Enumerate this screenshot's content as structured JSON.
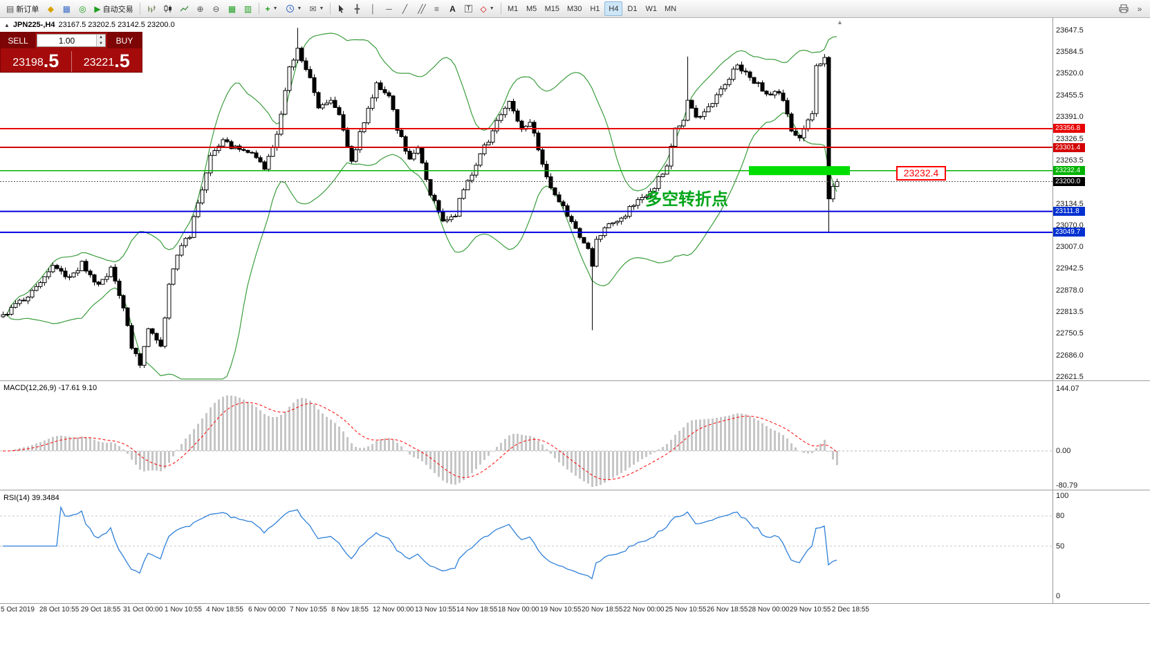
{
  "toolbar": {
    "new_order": "新订单",
    "auto_trading": "自动交易",
    "timeframes": [
      "M1",
      "M5",
      "M15",
      "M30",
      "H1",
      "H4",
      "D1",
      "W1",
      "MN"
    ],
    "active_timeframe": "H4"
  },
  "chart_header": {
    "symbol_period": "JPN225-,H4",
    "ohlc": "23167.5 23202.5 23142.5 23200.0"
  },
  "trade_panel": {
    "sell_label": "SELL",
    "buy_label": "BUY",
    "volume": "1.00",
    "bid_int": "23198",
    "bid_dec": ".5",
    "ask_int": "23221",
    "ask_dec": ".5"
  },
  "annotation": {
    "text": "多空转折点",
    "color": "#00a518"
  },
  "price_callout": {
    "text": "23232.4",
    "color": "#ff0000"
  },
  "indicators": {
    "macd_label": "MACD(12,26,9) -17.61 9.10",
    "rsi_label": "RSI(14) 39.3484"
  },
  "axes": {
    "price_labels": [
      "23647.5",
      "23584.5",
      "23520.0",
      "23455.5",
      "23391.0",
      "23326.5",
      "23263.5",
      "23134.5",
      "23070.0",
      "23007.0",
      "22942.5",
      "22878.0",
      "22813.5",
      "22750.5",
      "22686.0",
      "22621.5"
    ],
    "macd_labels": [
      {
        "text": "144.07",
        "value": 144.07
      },
      {
        "text": "0.00",
        "value": 0
      },
      {
        "text": "-80.79",
        "value": -80.79
      }
    ],
    "rsi_labels": [
      {
        "text": "100",
        "value": 100
      },
      {
        "text": "80",
        "value": 80
      },
      {
        "text": "50",
        "value": 50
      },
      {
        "text": "0",
        "value": 0
      }
    ],
    "time_labels": [
      "5 Oct 2019",
      "28 Oct 10:55",
      "29 Oct 18:55",
      "31 Oct 00:00",
      "1 Nov 10:55",
      "4 Nov 18:55",
      "6 Nov 00:00",
      "7 Nov 10:55",
      "8 Nov 18:55",
      "12 Nov 00:00",
      "13 Nov 10:55",
      "14 Nov 18:55",
      "18 Nov 00:00",
      "19 Nov 10:55",
      "20 Nov 18:55",
      "22 Nov 00:00",
      "25 Nov 10:55",
      "26 Nov 18:55",
      "28 Nov 00:00",
      "29 Nov 10:55",
      "2 Dec 18:55"
    ]
  },
  "axis_badges": [
    {
      "text": "23356.8",
      "bg": "#e80000",
      "price": 23356.8
    },
    {
      "text": "23301.4",
      "bg": "#d40000",
      "price": 23301.4
    },
    {
      "text": "23232.4",
      "bg": "#00b300",
      "price": 23232.4
    },
    {
      "text": "23200.0",
      "bg": "#000000",
      "price": 23200.0
    },
    {
      "text": "23111.8",
      "bg": "#0030d0",
      "price": 23111.8
    },
    {
      "text": "23049.7",
      "bg": "#0030d0",
      "price": 23049.7
    }
  ],
  "chart_data": {
    "type": "candlestick",
    "symbol": "JPN225-",
    "timeframe": "H4",
    "ohlc_current": {
      "open": 23167.5,
      "high": 23202.5,
      "low": 23142.5,
      "close": 23200.0
    },
    "price_range": [
      22621.5,
      23647.5
    ],
    "candle_count": 202,
    "up_color": "#ffffff",
    "down_color": "#000000",
    "hlines": [
      {
        "price": 23356.8,
        "color": "#e80000",
        "width": 2
      },
      {
        "price": 23301.4,
        "color": "#d40000",
        "width": 2
      },
      {
        "price": 23232.4,
        "color": "#00b300",
        "width": 1.5
      },
      {
        "price": 23111.8,
        "color": "#0000e0",
        "width": 2
      },
      {
        "price": 23049.7,
        "color": "#0000e0",
        "width": 2
      }
    ],
    "current_price": 23200.0,
    "highlight_bar": {
      "price": 23232.4,
      "color": "#00dd00"
    },
    "bollinger": {
      "period": 20,
      "deviation": 2,
      "color": "#3a9d3c"
    },
    "macd": {
      "fast": 12,
      "slow": 26,
      "signal_period": 9,
      "value": -17.61,
      "signal_value": 9.1,
      "range": [
        -80.79,
        144.07
      ],
      "hist_color": "#c6c6c6",
      "signal_color": "#ff0000"
    },
    "rsi": {
      "period": 14,
      "value": 39.3484,
      "color": "#2e7fd8",
      "levels": [
        80,
        50
      ]
    },
    "price_path": [
      [
        0,
        22800
      ],
      [
        3,
        22830
      ],
      [
        6,
        22860
      ],
      [
        9,
        22905
      ],
      [
        12,
        22945
      ],
      [
        16,
        22910
      ],
      [
        19,
        22955
      ],
      [
        23,
        22890
      ],
      [
        26,
        22945
      ],
      [
        29,
        22820
      ],
      [
        31,
        22715
      ],
      [
        33,
        22655
      ],
      [
        35,
        22760
      ],
      [
        38,
        22705
      ],
      [
        40,
        22890
      ],
      [
        42,
        22990
      ],
      [
        45,
        23040
      ],
      [
        47,
        23140
      ],
      [
        50,
        23270
      ],
      [
        53,
        23315
      ],
      [
        56,
        23300
      ],
      [
        60,
        23280
      ],
      [
        63,
        23245
      ],
      [
        66,
        23340
      ],
      [
        69,
        23540
      ],
      [
        71,
        23595
      ],
      [
        74,
        23500
      ],
      [
        76,
        23415
      ],
      [
        79,
        23435
      ],
      [
        81,
        23405
      ],
      [
        84,
        23265
      ],
      [
        86,
        23340
      ],
      [
        90,
        23490
      ],
      [
        93,
        23455
      ],
      [
        95,
        23355
      ],
      [
        98,
        23265
      ],
      [
        100,
        23305
      ],
      [
        103,
        23165
      ],
      [
        106,
        23085
      ],
      [
        109,
        23105
      ],
      [
        111,
        23180
      ],
      [
        114,
        23250
      ],
      [
        116,
        23300
      ],
      [
        120,
        23400
      ],
      [
        122,
        23430
      ],
      [
        125,
        23355
      ],
      [
        127,
        23380
      ],
      [
        130,
        23255
      ],
      [
        133,
        23155
      ],
      [
        136,
        23105
      ],
      [
        138,
        23055
      ],
      [
        141,
        23005
      ],
      [
        142,
        22945
      ],
      [
        143,
        23020
      ],
      [
        145,
        23060
      ],
      [
        147,
        23075
      ],
      [
        150,
        23105
      ],
      [
        152,
        23130
      ],
      [
        155,
        23155
      ],
      [
        157,
        23185
      ],
      [
        160,
        23250
      ],
      [
        162,
        23350
      ],
      [
        164,
        23385
      ],
      [
        165,
        23445
      ],
      [
        167,
        23385
      ],
      [
        170,
        23420
      ],
      [
        172,
        23450
      ],
      [
        175,
        23505
      ],
      [
        177,
        23550
      ],
      [
        180,
        23505
      ],
      [
        182,
        23485
      ],
      [
        185,
        23455
      ],
      [
        187,
        23470
      ],
      [
        190,
        23355
      ],
      [
        192,
        23325
      ],
      [
        195,
        23400
      ],
      [
        196,
        23550
      ],
      [
        198,
        23565
      ],
      [
        199,
        23150
      ],
      [
        200,
        23180
      ],
      [
        201,
        23200
      ]
    ],
    "wick_spikes_high": {
      "71": 23655,
      "165": 23570
    },
    "wick_spikes_low": {
      "142": 22760,
      "199": 23050
    }
  }
}
